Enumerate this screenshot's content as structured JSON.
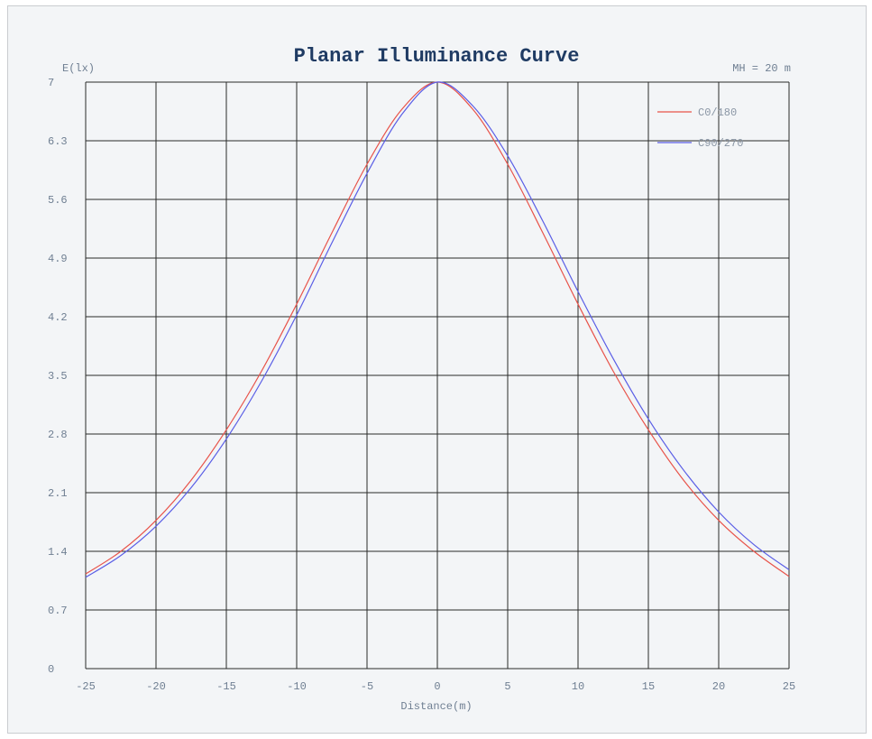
{
  "chart_data": {
    "type": "line",
    "title": "Planar Illuminance Curve",
    "xlabel": "Distance(m)",
    "ylabel": "E(lx)",
    "annotation": "MH = 20 m",
    "xlim": [
      -25,
      25
    ],
    "ylim": [
      0,
      7
    ],
    "xticks": [
      "-25",
      "-20",
      "-15",
      "-10",
      "-5",
      "0",
      "5",
      "10",
      "15",
      "20",
      "25"
    ],
    "yticks": [
      "0",
      "0.7",
      "1.4",
      "2.1",
      "2.8",
      "3.5",
      "4.2",
      "4.9",
      "5.6",
      "6.3",
      "7"
    ],
    "grid": true,
    "legend_position": "top-right",
    "series": [
      {
        "name": "C0/180",
        "color": "#e8534a",
        "x": [
          -25,
          -22.5,
          -20,
          -17.5,
          -15,
          -12.5,
          -10,
          -7.5,
          -5,
          -2.5,
          0,
          2.5,
          5,
          7.5,
          10,
          12.5,
          15,
          17.5,
          20,
          22.5,
          25
        ],
        "y": [
          1.13,
          1.4,
          1.77,
          2.25,
          2.85,
          3.55,
          4.35,
          5.2,
          6.02,
          6.68,
          7.0,
          6.68,
          6.02,
          5.2,
          4.35,
          3.55,
          2.85,
          2.25,
          1.77,
          1.4,
          1.1
        ]
      },
      {
        "name": "C90/270",
        "color": "#5a5ee6",
        "x": [
          -25,
          -22.5,
          -20,
          -17.5,
          -15,
          -12.5,
          -10,
          -7.5,
          -5,
          -2.5,
          0,
          2.5,
          5,
          7.5,
          10,
          12.5,
          15,
          17.5,
          20,
          22.5,
          25
        ],
        "y": [
          1.09,
          1.35,
          1.7,
          2.16,
          2.74,
          3.43,
          4.22,
          5.08,
          5.91,
          6.62,
          7.0,
          6.72,
          6.12,
          5.34,
          4.5,
          3.7,
          2.98,
          2.37,
          1.87,
          1.48,
          1.18
        ]
      }
    ]
  }
}
